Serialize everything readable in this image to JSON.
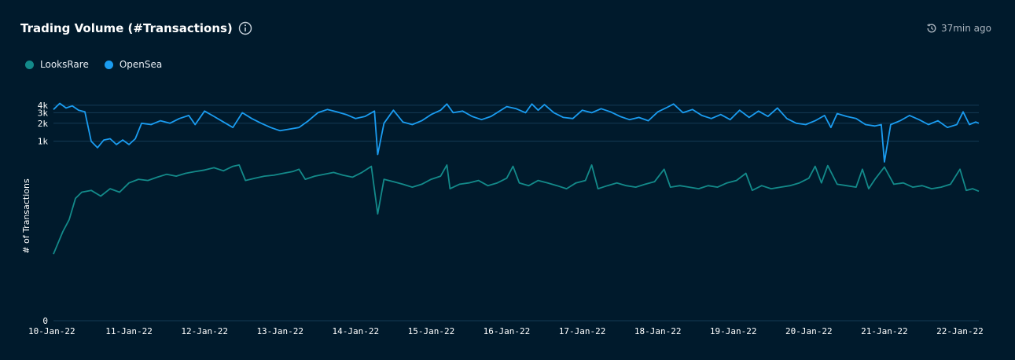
{
  "header": {
    "title": "Trading Volume (#Transactions)",
    "updated": "37min ago"
  },
  "icons": {
    "info": "info-circle-icon",
    "clock": "history-clock-icon"
  },
  "colors": {
    "background": "#001a2c",
    "looksrare": "#138a8a",
    "opensea": "#1a9cf0",
    "grid": "#143a55"
  },
  "chart_data": {
    "type": "line",
    "title": "Trading Volume (#Transactions)",
    "xlabel": "",
    "ylabel": "# of Transactions",
    "y_scale": "symlog",
    "y_ticks": [
      {
        "value": 0,
        "label": "0"
      },
      {
        "value": 1000,
        "label": "1k"
      },
      {
        "value": 2000,
        "label": "2k"
      },
      {
        "value": 3000,
        "label": "3k"
      },
      {
        "value": 4000,
        "label": "4k"
      }
    ],
    "x_ticks": [
      "10-Jan-22",
      "11-Jan-22",
      "12-Jan-22",
      "13-Jan-22",
      "14-Jan-22",
      "15-Jan-22",
      "16-Jan-22",
      "17-Jan-22",
      "18-Jan-22",
      "19-Jan-22",
      "20-Jan-22",
      "21-Jan-22",
      "22-Jan-22"
    ],
    "legend": "top-left",
    "grid": "horizontal",
    "series": [
      {
        "name": "LooksRare",
        "color": "#138a8a",
        "points": [
          [
            "2022-01-10T00:00",
            12
          ],
          [
            "2022-01-10T03:00",
            30
          ],
          [
            "2022-01-10T05:00",
            48
          ],
          [
            "2022-01-10T07:00",
            110
          ],
          [
            "2022-01-10T09:00",
            140
          ],
          [
            "2022-01-10T12:00",
            150
          ],
          [
            "2022-01-10T15:00",
            120
          ],
          [
            "2022-01-10T18:00",
            160
          ],
          [
            "2022-01-10T21:00",
            140
          ],
          [
            "2022-01-11T00:00",
            200
          ],
          [
            "2022-01-11T03:00",
            230
          ],
          [
            "2022-01-11T06:00",
            220
          ],
          [
            "2022-01-11T09:00",
            250
          ],
          [
            "2022-01-11T12:00",
            280
          ],
          [
            "2022-01-11T15:00",
            260
          ],
          [
            "2022-01-11T18:00",
            290
          ],
          [
            "2022-01-11T21:00",
            310
          ],
          [
            "2022-01-12T00:00",
            330
          ],
          [
            "2022-01-12T03:00",
            360
          ],
          [
            "2022-01-12T06:00",
            320
          ],
          [
            "2022-01-12T09:00",
            380
          ],
          [
            "2022-01-12T11:00",
            400
          ],
          [
            "2022-01-12T13:00",
            220
          ],
          [
            "2022-01-12T16:00",
            240
          ],
          [
            "2022-01-12T19:00",
            260
          ],
          [
            "2022-01-12T22:00",
            270
          ],
          [
            "2022-01-13T01:00",
            290
          ],
          [
            "2022-01-13T04:00",
            310
          ],
          [
            "2022-01-13T06:00",
            340
          ],
          [
            "2022-01-13T08:00",
            230
          ],
          [
            "2022-01-13T11:00",
            260
          ],
          [
            "2022-01-13T14:00",
            280
          ],
          [
            "2022-01-13T17:00",
            300
          ],
          [
            "2022-01-13T20:00",
            270
          ],
          [
            "2022-01-13T23:00",
            250
          ],
          [
            "2022-01-14T02:00",
            300
          ],
          [
            "2022-01-14T05:00",
            380
          ],
          [
            "2022-01-14T07:00",
            60
          ],
          [
            "2022-01-14T09:00",
            230
          ],
          [
            "2022-01-14T12:00",
            210
          ],
          [
            "2022-01-14T15:00",
            190
          ],
          [
            "2022-01-14T18:00",
            170
          ],
          [
            "2022-01-14T21:00",
            190
          ],
          [
            "2022-01-15T00:00",
            230
          ],
          [
            "2022-01-15T03:00",
            260
          ],
          [
            "2022-01-15T05:00",
            400
          ],
          [
            "2022-01-15T06:00",
            160
          ],
          [
            "2022-01-15T09:00",
            190
          ],
          [
            "2022-01-15T12:00",
            200
          ],
          [
            "2022-01-15T15:00",
            220
          ],
          [
            "2022-01-15T18:00",
            180
          ],
          [
            "2022-01-15T21:00",
            200
          ],
          [
            "2022-01-16T00:00",
            240
          ],
          [
            "2022-01-16T02:00",
            380
          ],
          [
            "2022-01-16T04:00",
            200
          ],
          [
            "2022-01-16T07:00",
            180
          ],
          [
            "2022-01-16T10:00",
            220
          ],
          [
            "2022-01-16T13:00",
            200
          ],
          [
            "2022-01-16T16:00",
            180
          ],
          [
            "2022-01-16T19:00",
            160
          ],
          [
            "2022-01-16T22:00",
            200
          ],
          [
            "2022-01-17T01:00",
            220
          ],
          [
            "2022-01-17T03:00",
            400
          ],
          [
            "2022-01-17T05:00",
            160
          ],
          [
            "2022-01-17T08:00",
            180
          ],
          [
            "2022-01-17T11:00",
            200
          ],
          [
            "2022-01-17T14:00",
            180
          ],
          [
            "2022-01-17T17:00",
            170
          ],
          [
            "2022-01-17T20:00",
            190
          ],
          [
            "2022-01-17T23:00",
            210
          ],
          [
            "2022-01-18T02:00",
            340
          ],
          [
            "2022-01-18T04:00",
            170
          ],
          [
            "2022-01-18T07:00",
            180
          ],
          [
            "2022-01-18T10:00",
            170
          ],
          [
            "2022-01-18T13:00",
            160
          ],
          [
            "2022-01-18T16:00",
            180
          ],
          [
            "2022-01-18T19:00",
            170
          ],
          [
            "2022-01-18T22:00",
            200
          ],
          [
            "2022-01-19T01:00",
            220
          ],
          [
            "2022-01-19T04:00",
            290
          ],
          [
            "2022-01-19T06:00",
            150
          ],
          [
            "2022-01-19T09:00",
            180
          ],
          [
            "2022-01-19T12:00",
            160
          ],
          [
            "2022-01-19T15:00",
            170
          ],
          [
            "2022-01-19T18:00",
            180
          ],
          [
            "2022-01-19T21:00",
            200
          ],
          [
            "2022-01-20T00:00",
            240
          ],
          [
            "2022-01-20T02:00",
            380
          ],
          [
            "2022-01-20T04:00",
            200
          ],
          [
            "2022-01-20T06:00",
            390
          ],
          [
            "2022-01-20T09:00",
            190
          ],
          [
            "2022-01-20T12:00",
            180
          ],
          [
            "2022-01-20T15:00",
            170
          ],
          [
            "2022-01-20T17:00",
            340
          ],
          [
            "2022-01-20T19:00",
            160
          ],
          [
            "2022-01-20T21:00",
            230
          ],
          [
            "2022-01-21T00:00",
            370
          ],
          [
            "2022-01-21T03:00",
            190
          ],
          [
            "2022-01-21T06:00",
            200
          ],
          [
            "2022-01-21T09:00",
            170
          ],
          [
            "2022-01-21T12:00",
            180
          ],
          [
            "2022-01-21T15:00",
            160
          ],
          [
            "2022-01-21T18:00",
            170
          ],
          [
            "2022-01-21T21:00",
            190
          ],
          [
            "2022-01-22T00:00",
            340
          ],
          [
            "2022-01-22T02:00",
            150
          ],
          [
            "2022-01-22T04:00",
            160
          ],
          [
            "2022-01-22T06:00",
            145
          ]
        ]
      },
      {
        "name": "OpenSea",
        "color": "#1a9cf0",
        "points": [
          [
            "2022-01-10T00:00",
            3400
          ],
          [
            "2022-01-10T02:00",
            4300
          ],
          [
            "2022-01-10T04:00",
            3600
          ],
          [
            "2022-01-10T06:00",
            3900
          ],
          [
            "2022-01-10T08:00",
            3300
          ],
          [
            "2022-01-10T10:00",
            3100
          ],
          [
            "2022-01-10T12:00",
            1000
          ],
          [
            "2022-01-10T14:00",
            780
          ],
          [
            "2022-01-10T16:00",
            1050
          ],
          [
            "2022-01-10T18:00",
            1100
          ],
          [
            "2022-01-10T20:00",
            880
          ],
          [
            "2022-01-10T22:00",
            1050
          ],
          [
            "2022-01-11T00:00",
            880
          ],
          [
            "2022-01-11T02:00",
            1100
          ],
          [
            "2022-01-11T04:00",
            2000
          ],
          [
            "2022-01-11T07:00",
            1900
          ],
          [
            "2022-01-11T10:00",
            2200
          ],
          [
            "2022-01-11T13:00",
            2000
          ],
          [
            "2022-01-11T16:00",
            2400
          ],
          [
            "2022-01-11T19:00",
            2700
          ],
          [
            "2022-01-11T21:00",
            1900
          ],
          [
            "2022-01-12T00:00",
            3200
          ],
          [
            "2022-01-12T03:00",
            2600
          ],
          [
            "2022-01-12T06:00",
            2100
          ],
          [
            "2022-01-12T09:00",
            1700
          ],
          [
            "2022-01-12T12:00",
            3000
          ],
          [
            "2022-01-12T15:00",
            2400
          ],
          [
            "2022-01-12T18:00",
            2000
          ],
          [
            "2022-01-12T21:00",
            1700
          ],
          [
            "2022-01-13T00:00",
            1500
          ],
          [
            "2022-01-13T03:00",
            1600
          ],
          [
            "2022-01-13T06:00",
            1700
          ],
          [
            "2022-01-13T09:00",
            2200
          ],
          [
            "2022-01-13T12:00",
            3000
          ],
          [
            "2022-01-13T15:00",
            3400
          ],
          [
            "2022-01-13T18:00",
            3100
          ],
          [
            "2022-01-13T21:00",
            2800
          ],
          [
            "2022-01-14T00:00",
            2400
          ],
          [
            "2022-01-14T03:00",
            2600
          ],
          [
            "2022-01-14T06:00",
            3200
          ],
          [
            "2022-01-14T07:00",
            600
          ],
          [
            "2022-01-14T09:00",
            2000
          ],
          [
            "2022-01-14T12:00",
            3300
          ],
          [
            "2022-01-14T15:00",
            2100
          ],
          [
            "2022-01-14T18:00",
            1900
          ],
          [
            "2022-01-14T21:00",
            2200
          ],
          [
            "2022-01-15T00:00",
            2800
          ],
          [
            "2022-01-15T03:00",
            3300
          ],
          [
            "2022-01-15T05:00",
            4200
          ],
          [
            "2022-01-15T07:00",
            3000
          ],
          [
            "2022-01-15T10:00",
            3200
          ],
          [
            "2022-01-15T13:00",
            2600
          ],
          [
            "2022-01-15T16:00",
            2300
          ],
          [
            "2022-01-15T19:00",
            2600
          ],
          [
            "2022-01-16T00:00",
            3800
          ],
          [
            "2022-01-16T03:00",
            3500
          ],
          [
            "2022-01-16T06:00",
            3000
          ],
          [
            "2022-01-16T08:00",
            4200
          ],
          [
            "2022-01-16T10:00",
            3300
          ],
          [
            "2022-01-16T12:00",
            4100
          ],
          [
            "2022-01-16T15:00",
            3000
          ],
          [
            "2022-01-16T18:00",
            2500
          ],
          [
            "2022-01-16T21:00",
            2400
          ],
          [
            "2022-01-17T00:00",
            3300
          ],
          [
            "2022-01-17T03:00",
            3000
          ],
          [
            "2022-01-17T06:00",
            3500
          ],
          [
            "2022-01-17T09:00",
            3100
          ],
          [
            "2022-01-17T12:00",
            2600
          ],
          [
            "2022-01-17T15:00",
            2300
          ],
          [
            "2022-01-17T18:00",
            2500
          ],
          [
            "2022-01-17T21:00",
            2200
          ],
          [
            "2022-01-18T00:00",
            3100
          ],
          [
            "2022-01-18T03:00",
            3700
          ],
          [
            "2022-01-18T05:00",
            4200
          ],
          [
            "2022-01-18T08:00",
            3000
          ],
          [
            "2022-01-18T11:00",
            3400
          ],
          [
            "2022-01-18T14:00",
            2700
          ],
          [
            "2022-01-18T17:00",
            2400
          ],
          [
            "2022-01-18T20:00",
            2800
          ],
          [
            "2022-01-18T23:00",
            2300
          ],
          [
            "2022-01-19T02:00",
            3300
          ],
          [
            "2022-01-19T05:00",
            2500
          ],
          [
            "2022-01-19T08:00",
            3200
          ],
          [
            "2022-01-19T11:00",
            2600
          ],
          [
            "2022-01-19T14:00",
            3600
          ],
          [
            "2022-01-19T17:00",
            2400
          ],
          [
            "2022-01-19T20:00",
            2000
          ],
          [
            "2022-01-19T23:00",
            1900
          ],
          [
            "2022-01-20T02:00",
            2200
          ],
          [
            "2022-01-20T05:00",
            2700
          ],
          [
            "2022-01-20T07:00",
            1700
          ],
          [
            "2022-01-20T09:00",
            2900
          ],
          [
            "2022-01-20T12:00",
            2600
          ],
          [
            "2022-01-20T15:00",
            2400
          ],
          [
            "2022-01-20T18:00",
            1900
          ],
          [
            "2022-01-20T21:00",
            1800
          ],
          [
            "2022-01-20T23:00",
            1900
          ],
          [
            "2022-01-21T00:00",
            450
          ],
          [
            "2022-01-21T02:00",
            1900
          ],
          [
            "2022-01-21T05:00",
            2200
          ],
          [
            "2022-01-21T08:00",
            2700
          ],
          [
            "2022-01-21T11:00",
            2300
          ],
          [
            "2022-01-21T14:00",
            1900
          ],
          [
            "2022-01-21T17:00",
            2200
          ],
          [
            "2022-01-21T20:00",
            1700
          ],
          [
            "2022-01-21T23:00",
            1900
          ],
          [
            "2022-01-22T01:00",
            3100
          ],
          [
            "2022-01-22T03:00",
            1900
          ],
          [
            "2022-01-22T05:00",
            2100
          ],
          [
            "2022-01-22T06:00",
            2000
          ]
        ]
      }
    ]
  }
}
